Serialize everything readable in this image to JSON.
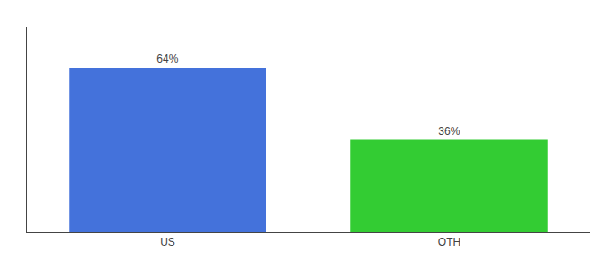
{
  "chart_data": {
    "type": "bar",
    "categories": [
      "US",
      "OTH"
    ],
    "values": [
      64,
      36
    ],
    "value_labels": [
      "64%",
      "36%"
    ],
    "colors": [
      "#4472db",
      "#33cc33"
    ],
    "ylim": [
      0,
      80
    ],
    "grid": false,
    "data_labels": true,
    "tick_labels": "x"
  }
}
